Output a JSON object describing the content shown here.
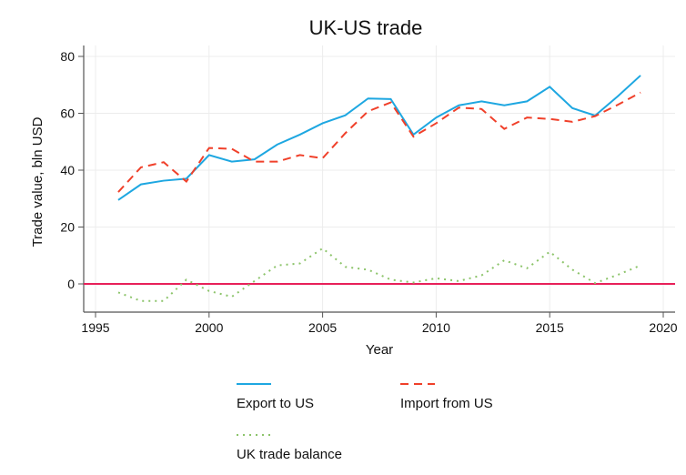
{
  "chart_data": {
    "type": "line",
    "title": "UK-US trade",
    "xlabel": "Year",
    "ylabel": "Trade value, bln USD",
    "xlim": [
      1994.5,
      2020.5
    ],
    "ylim": [
      -9,
      84
    ],
    "xticks": [
      1995,
      2000,
      2005,
      2010,
      2015,
      2020
    ],
    "yticks": [
      0,
      20,
      40,
      60,
      80
    ],
    "grid": true,
    "legend_placement": "bottom",
    "x": [
      1996,
      1997,
      1998,
      1999,
      2000,
      2001,
      2002,
      2003,
      2004,
      2005,
      2006,
      2007,
      2008,
      2009,
      2010,
      2011,
      2012,
      2013,
      2014,
      2015,
      2016,
      2017,
      2018,
      2019
    ],
    "series": [
      {
        "name": "Export to US",
        "color": "#1ea7e1",
        "style": "solid",
        "values": [
          29.5,
          35,
          36.3,
          37,
          45.3,
          43,
          43.8,
          49,
          52.5,
          56.5,
          59.3,
          65.2,
          65,
          52.5,
          58.5,
          62.8,
          64.2,
          62.8,
          64.2,
          69.3,
          61.8,
          59.2,
          66,
          73.3
        ]
      },
      {
        "name": "Import from US",
        "color": "#f0402a",
        "style": "dashed",
        "values": [
          32.3,
          41,
          42.8,
          36,
          47.8,
          47.5,
          43,
          43,
          45.3,
          44.2,
          53,
          60.7,
          63.8,
          51.8,
          56.5,
          62,
          61.5,
          54.5,
          58.5,
          58,
          57,
          59,
          63,
          67.3
        ]
      },
      {
        "name": "UK trade balance",
        "color": "#8cc46a",
        "style": "dotted",
        "values": [
          -3,
          -6,
          -6,
          1.5,
          -2.5,
          -4.5,
          1,
          6.5,
          7.2,
          12.5,
          6,
          5,
          1.5,
          0.5,
          2,
          1,
          3,
          8.3,
          5.5,
          11.3,
          5,
          0.3,
          3.2,
          6.5
        ]
      }
    ],
    "reference_line": {
      "y": 0,
      "color": "#e8205a"
    }
  }
}
